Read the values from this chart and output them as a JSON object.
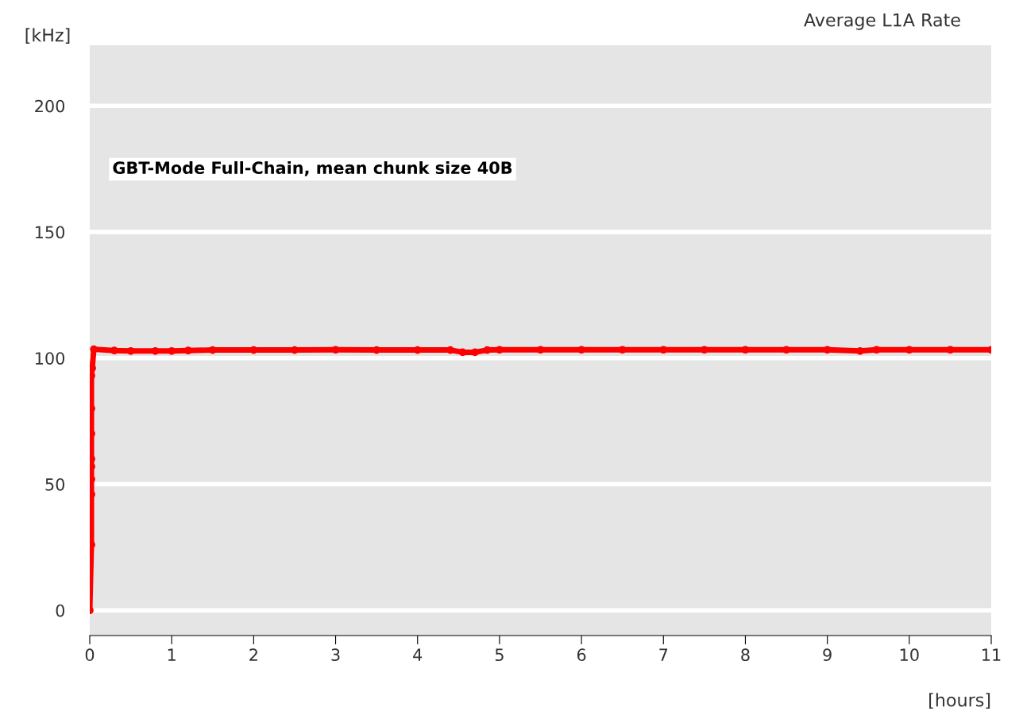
{
  "chart_data": {
    "type": "line",
    "title": "Average L1A Rate",
    "xlabel": "[hours]",
    "ylabel": "[kHz]",
    "annotations": [
      "GBT-Mode Full-Chain, mean chunk size 40B"
    ],
    "series": [
      {
        "color": "#ff0000",
        "x": [
          0.0,
          0.02,
          0.02,
          0.02,
          0.02,
          0.02,
          0.02,
          0.02,
          0.02,
          0.03,
          0.05,
          0.3,
          0.5,
          0.8,
          1.0,
          1.2,
          1.5,
          2.0,
          2.5,
          3.0,
          3.5,
          4.0,
          4.4,
          4.55,
          4.7,
          4.85,
          5.0,
          5.5,
          6.0,
          6.5,
          7.0,
          7.5,
          8.0,
          8.5,
          9.0,
          9.4,
          9.6,
          10.0,
          10.5,
          11.0
        ],
        "values": [
          0,
          26,
          46,
          52,
          57,
          60,
          70,
          80,
          93,
          96,
          103.5,
          103,
          102.8,
          102.8,
          102.8,
          103,
          103.2,
          103.2,
          103.2,
          103.3,
          103.2,
          103.2,
          103.2,
          102.3,
          102.3,
          103.2,
          103.3,
          103.3,
          103.3,
          103.3,
          103.3,
          103.3,
          103.3,
          103.3,
          103.3,
          102.8,
          103.3,
          103.3,
          103.3,
          103.3
        ]
      }
    ],
    "marker": "circle",
    "line_style": "solid",
    "xlim": [
      0,
      11
    ],
    "xticks": [
      0,
      1,
      2,
      3,
      4,
      5,
      6,
      7,
      8,
      9,
      10,
      11
    ],
    "ylim": [
      -10,
      224
    ],
    "yticks": [
      0,
      50,
      100,
      150,
      200
    ],
    "grid": "y"
  }
}
